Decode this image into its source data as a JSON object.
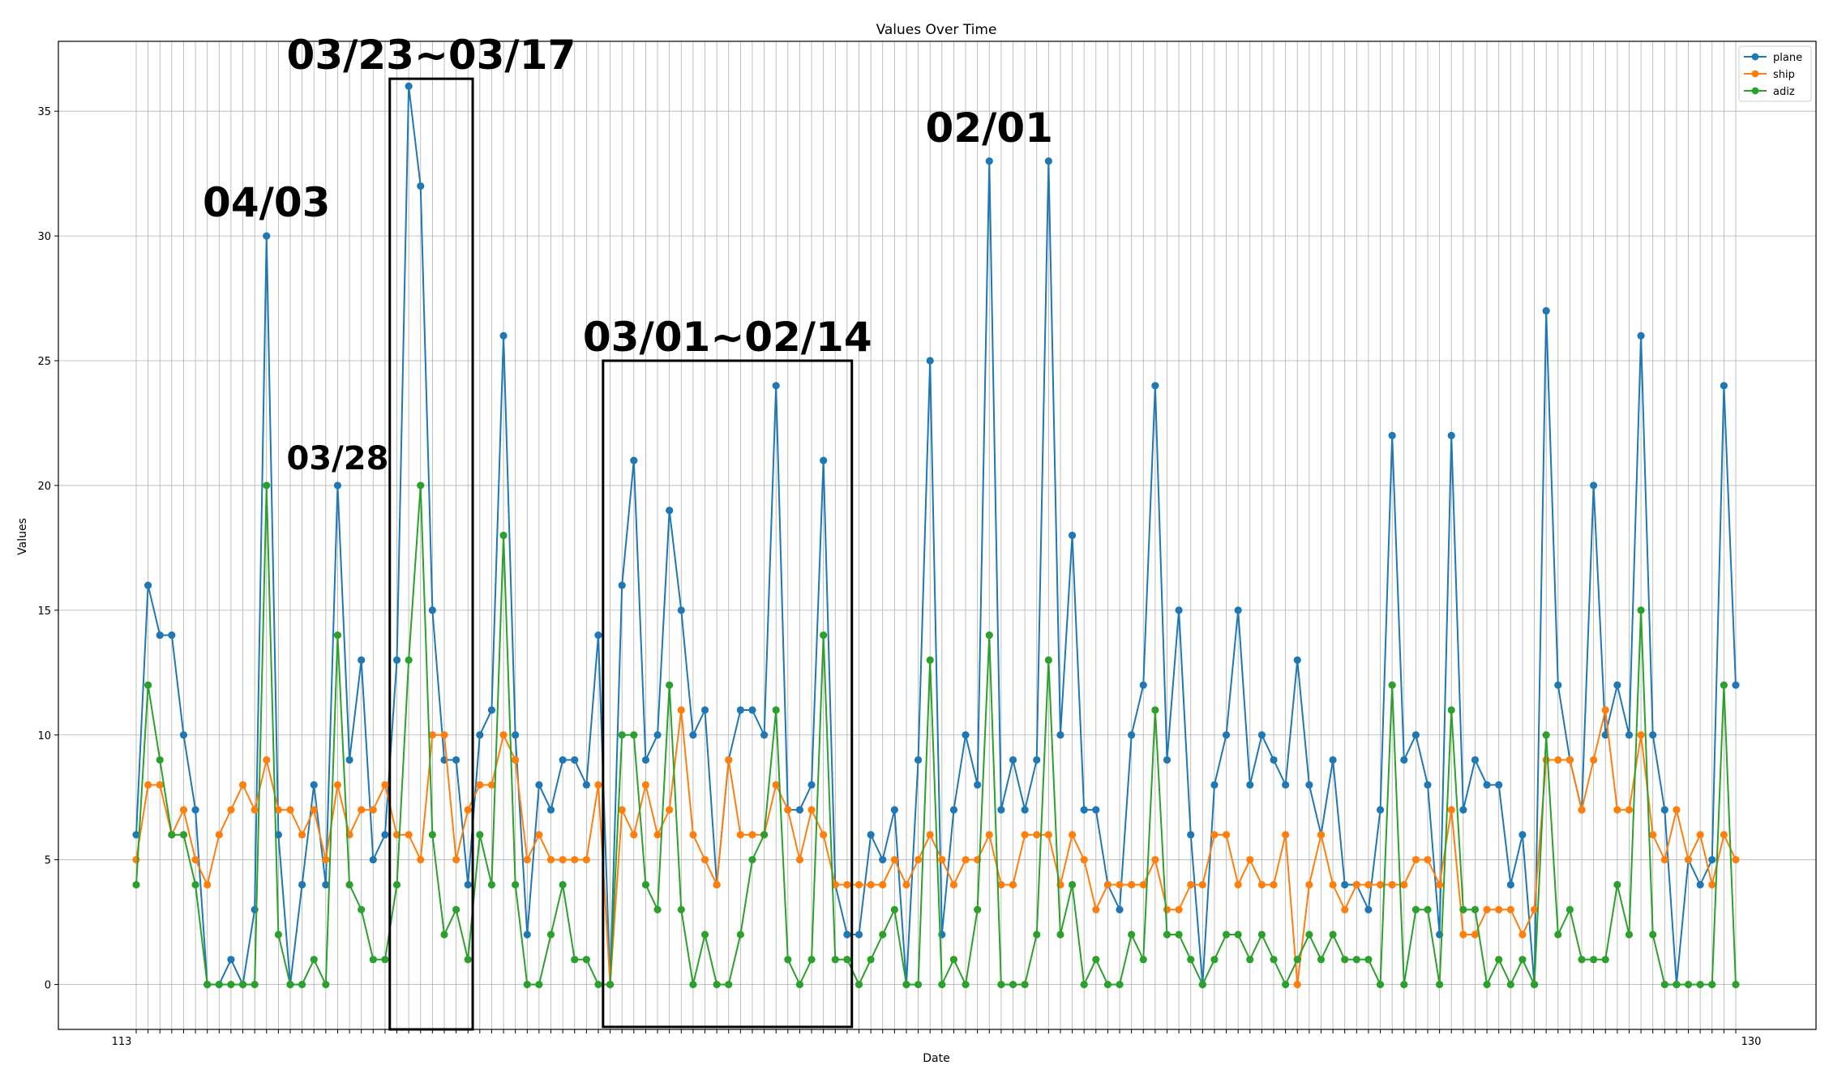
{
  "chart_data": {
    "type": "line",
    "title": "Values Over Time",
    "xlabel": "Date",
    "ylabel": "Values",
    "ylim": [
      -1.8,
      37.8
    ],
    "yticks": [
      0,
      5,
      10,
      15,
      20,
      25,
      30,
      35
    ],
    "grid": true,
    "legend_position": "top-right",
    "x_first_label": "113",
    "x_last_label": "130",
    "series": [
      {
        "name": "plane",
        "color": "#1f77b4",
        "values": [
          6,
          16,
          14,
          14,
          10,
          7,
          0,
          0,
          1,
          0,
          3,
          30,
          6,
          0,
          4,
          8,
          4,
          20,
          9,
          13,
          5,
          6,
          13,
          36,
          32,
          15,
          9,
          9,
          4,
          10,
          11,
          26,
          10,
          2,
          8,
          7,
          9,
          9,
          8,
          14,
          0,
          16,
          21,
          9,
          10,
          19,
          15,
          10,
          11,
          4,
          9,
          11,
          11,
          10,
          24,
          7,
          7,
          8,
          21,
          4,
          2,
          2,
          6,
          5,
          7,
          0,
          9,
          25,
          2,
          7,
          10,
          8,
          33,
          7,
          9,
          7,
          9,
          33,
          10,
          18,
          7,
          7,
          4,
          3,
          10,
          12,
          24,
          9,
          15,
          6,
          0,
          8,
          10,
          15,
          8,
          10,
          9,
          8,
          13,
          8,
          6,
          9,
          4,
          4,
          3,
          7,
          22,
          9,
          10,
          8,
          2,
          22,
          7,
          9,
          8,
          8,
          4,
          6,
          0,
          27,
          12,
          9,
          7,
          20,
          10,
          12,
          10,
          26,
          10,
          7,
          0,
          5,
          4,
          5,
          24,
          12
        ]
      },
      {
        "name": "ship",
        "color": "#ff7f0e",
        "values": [
          5,
          8,
          8,
          6,
          7,
          5,
          4,
          6,
          7,
          8,
          7,
          9,
          7,
          7,
          6,
          7,
          5,
          8,
          6,
          7,
          7,
          8,
          6,
          6,
          5,
          10,
          10,
          5,
          7,
          8,
          8,
          10,
          9,
          5,
          6,
          5,
          5,
          5,
          5,
          8,
          0,
          7,
          6,
          8,
          6,
          7,
          11,
          6,
          5,
          4,
          9,
          6,
          6,
          6,
          8,
          7,
          5,
          7,
          6,
          4,
          4,
          4,
          4,
          4,
          5,
          4,
          5,
          6,
          5,
          4,
          5,
          5,
          6,
          4,
          4,
          6,
          6,
          6,
          4,
          6,
          5,
          3,
          4,
          4,
          4,
          4,
          5,
          3,
          3,
          4,
          4,
          6,
          6,
          4,
          5,
          4,
          4,
          6,
          0,
          4,
          6,
          4,
          3,
          4,
          4,
          4,
          4,
          4,
          5,
          5,
          4,
          7,
          2,
          2,
          3,
          3,
          3,
          2,
          3,
          9,
          9,
          9,
          7,
          9,
          11,
          7,
          7,
          10,
          6,
          5,
          7,
          5,
          6,
          4,
          6,
          5
        ]
      },
      {
        "name": "adiz",
        "color": "#2ca02c",
        "values": [
          4,
          12,
          9,
          6,
          6,
          4,
          0,
          0,
          0,
          0,
          0,
          20,
          2,
          0,
          0,
          1,
          0,
          14,
          4,
          3,
          1,
          1,
          4,
          13,
          20,
          6,
          2,
          3,
          1,
          6,
          4,
          18,
          4,
          0,
          0,
          2,
          4,
          1,
          1,
          0,
          0,
          10,
          10,
          4,
          3,
          12,
          3,
          0,
          2,
          0,
          0,
          2,
          5,
          6,
          11,
          1,
          0,
          1,
          14,
          1,
          1,
          0,
          1,
          2,
          3,
          0,
          0,
          13,
          0,
          1,
          0,
          3,
          14,
          0,
          0,
          0,
          2,
          13,
          2,
          4,
          0,
          1,
          0,
          0,
          2,
          1,
          11,
          2,
          2,
          1,
          0,
          1,
          2,
          2,
          1,
          2,
          1,
          0,
          1,
          2,
          1,
          2,
          1,
          1,
          1,
          0,
          12,
          0,
          3,
          3,
          0,
          11,
          3,
          3,
          0,
          1,
          0,
          1,
          0,
          10,
          2,
          3,
          1,
          1,
          1,
          4,
          2,
          15,
          2,
          0,
          0,
          0,
          0,
          0,
          12,
          0
        ]
      }
    ],
    "annotations": [
      {
        "text": "03/23~03/17",
        "box_x": [
          21.4,
          28.4
        ],
        "box_y": [
          -1.8,
          36.3
        ]
      },
      {
        "text": "03/01~02/14",
        "box_x": [
          39.4,
          60.4
        ],
        "box_y": [
          -1.7,
          25.0
        ]
      },
      {
        "text": "04/03",
        "at_x": 11,
        "at_y": 30
      },
      {
        "text": "03/28",
        "at_x": 17,
        "at_y": 20
      },
      {
        "text": "02/01",
        "at_x": 72,
        "at_y": 33
      }
    ]
  }
}
